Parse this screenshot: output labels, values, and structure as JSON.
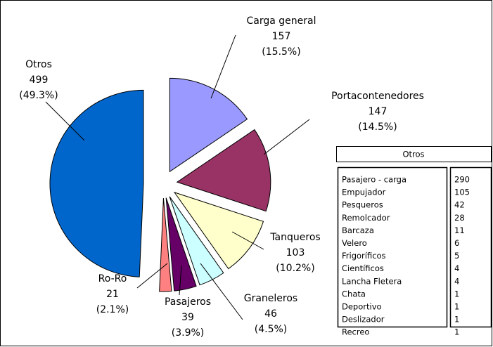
{
  "chart_data": {
    "type": "pie",
    "categories": [
      "Carga general",
      "Portacontenedores",
      "Tanqueros",
      "Graneleros",
      "Pasajeros",
      "Ro-Ro",
      "Otros"
    ],
    "values": [
      157,
      147,
      103,
      46,
      39,
      21,
      499
    ],
    "percent_labels": [
      "(15.5%)",
      "(14.5%)",
      "(10.2%)",
      "(4.5%)",
      "(3.9%)",
      "(2.1%)",
      "(49.3%)"
    ],
    "colors": [
      "#9999ff",
      "#993366",
      "#ffffcc",
      "#ccffff",
      "#660066",
      "#ff8080",
      "#0066cc"
    ],
    "table": {
      "title": "Otros",
      "rows": [
        [
          "Pasajero - carga",
          "290"
        ],
        [
          "Empujador",
          "105"
        ],
        [
          "Pesqueros",
          "42"
        ],
        [
          "Remolcador",
          "28"
        ],
        [
          "Barcaza",
          "11"
        ],
        [
          "Velero",
          "6"
        ],
        [
          "Frigoríficos",
          "5"
        ],
        [
          "Científicos",
          "4"
        ],
        [
          "Lancha Fletera",
          "4"
        ],
        [
          "Chata",
          "1"
        ],
        [
          "Deportivo",
          "1"
        ],
        [
          "Deslizador",
          "1"
        ],
        [
          "Recreo",
          "1"
        ]
      ]
    }
  }
}
